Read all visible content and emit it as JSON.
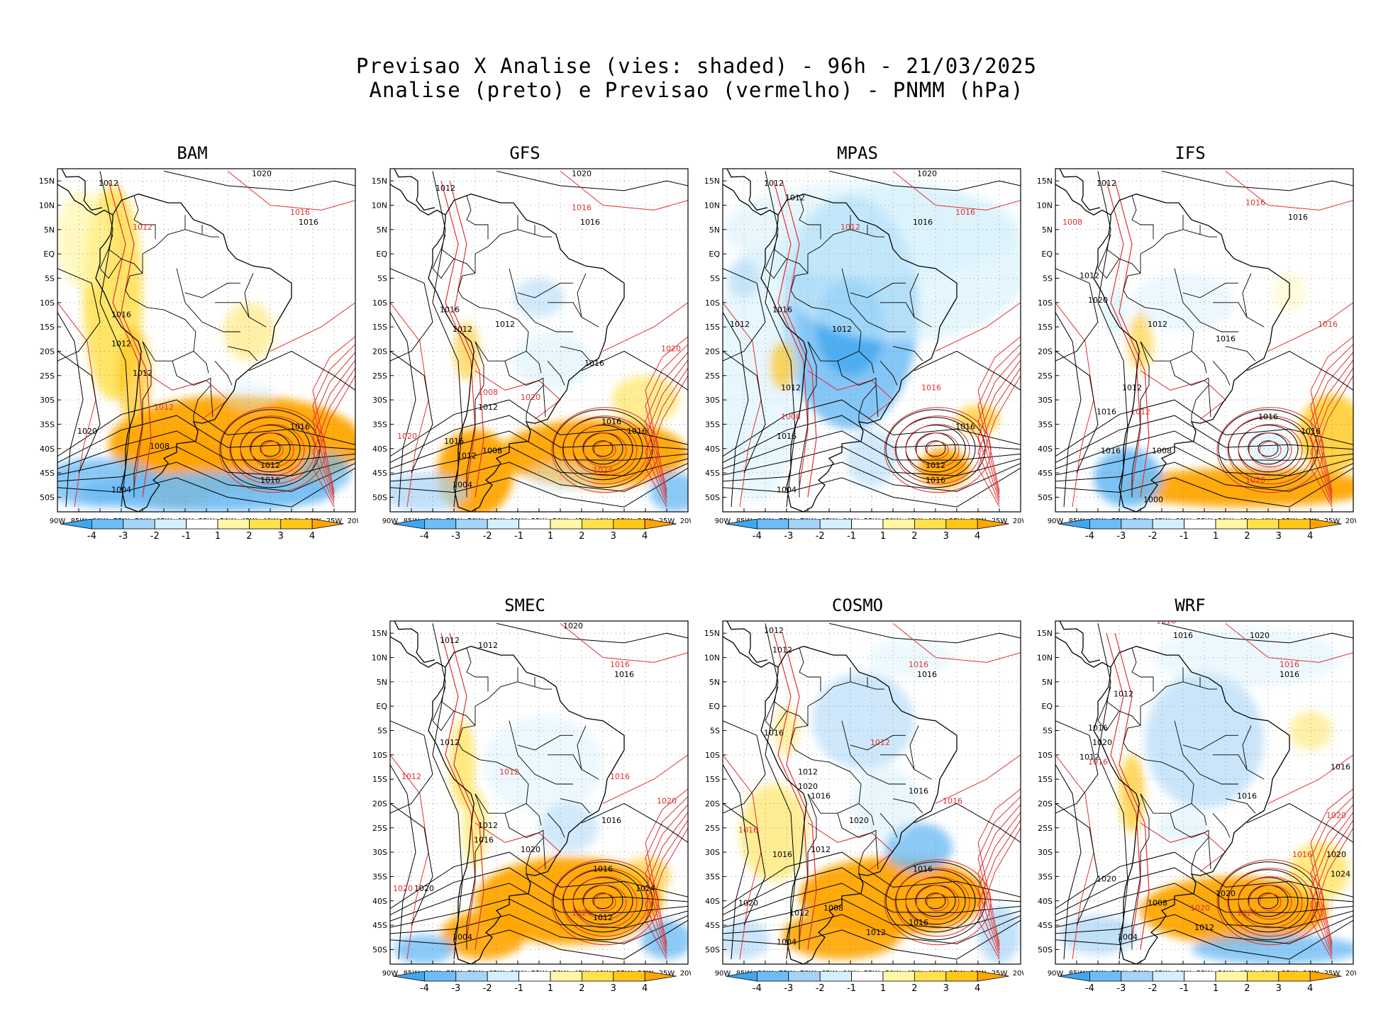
{
  "title": {
    "line1": "Previsao X Analise (vies: shaded) - 96h - 21/03/2025",
    "line2": "Analise (preto) e Previsao (vermelho) - PNMM (hPa)"
  },
  "lat_labels": [
    "15N",
    "10N",
    "5N",
    "EQ",
    "5S",
    "10S",
    "15S",
    "20S",
    "25S",
    "30S",
    "35S",
    "40S",
    "45S",
    "50S"
  ],
  "lon_labels": [
    "90W",
    "85W",
    "80W",
    "75W",
    "70W",
    "65W",
    "60W",
    "55W",
    "50W",
    "45W",
    "40W",
    "35W",
    "30W",
    "25W",
    "20W"
  ],
  "colorbar": {
    "labels": [
      "-4",
      "-3",
      "-2",
      "-1",
      "1",
      "2",
      "3",
      "4"
    ],
    "colors": [
      "#3fa7f0",
      "#6ebcf5",
      "#a6d4f7",
      "#d4f0fc",
      "#ffffff",
      "#fff7a6",
      "#ffe14d",
      "#ffc71a",
      "#ffa500"
    ]
  },
  "colors": {
    "analysis": "#000000",
    "forecast": "#e03030",
    "coast": "#000000"
  },
  "panels": [
    {
      "name": "BAM",
      "style": "bam",
      "labels": [
        {
          "t": "1020",
          "a": "analysis",
          "lon": -42,
          "lat": 16
        },
        {
          "t": "1016",
          "a": "forecast",
          "lon": -33,
          "lat": 8
        },
        {
          "t": "1016",
          "a": "analysis",
          "lon": -31,
          "lat": 6
        },
        {
          "t": "1012",
          "a": "analysis",
          "lon": -78,
          "lat": 14
        },
        {
          "t": "1012",
          "a": "forecast",
          "lon": -70,
          "lat": 5
        },
        {
          "t": "1016",
          "a": "analysis",
          "lon": -75,
          "lat": -13
        },
        {
          "t": "1012",
          "a": "analysis",
          "lon": -75,
          "lat": -19
        },
        {
          "t": "1012",
          "a": "analysis",
          "lon": -70,
          "lat": -25
        },
        {
          "t": "1012",
          "a": "forecast",
          "lon": -65,
          "lat": -32
        },
        {
          "t": "1016",
          "a": "analysis",
          "lon": -33,
          "lat": -36
        },
        {
          "t": "1020",
          "a": "analysis",
          "lon": -83,
          "lat": -37
        },
        {
          "t": "1008",
          "a": "analysis",
          "lon": -66,
          "lat": -40
        },
        {
          "t": "1012",
          "a": "analysis",
          "lon": -40,
          "lat": -44
        },
        {
          "t": "1016",
          "a": "analysis",
          "lon": -40,
          "lat": -47
        },
        {
          "t": "1004",
          "a": "analysis",
          "lon": -75,
          "lat": -49
        }
      ]
    },
    {
      "name": "GFS",
      "style": "gfs",
      "labels": [
        {
          "t": "1020",
          "a": "analysis",
          "lon": -45,
          "lat": 16
        },
        {
          "t": "1016",
          "a": "forecast",
          "lon": -45,
          "lat": 9
        },
        {
          "t": "1016",
          "a": "analysis",
          "lon": -43,
          "lat": 6
        },
        {
          "t": "1012",
          "a": "analysis",
          "lon": -77,
          "lat": 13
        },
        {
          "t": "1016",
          "a": "analysis",
          "lon": -76,
          "lat": -12
        },
        {
          "t": "1012",
          "a": "analysis",
          "lon": -73,
          "lat": -16
        },
        {
          "t": "1012",
          "a": "analysis",
          "lon": -63,
          "lat": -15
        },
        {
          "t": "1016",
          "a": "analysis",
          "lon": -42,
          "lat": -23
        },
        {
          "t": "1020",
          "a": "forecast",
          "lon": -24,
          "lat": -20
        },
        {
          "t": "1008",
          "a": "forecast",
          "lon": -67,
          "lat": -29
        },
        {
          "t": "1012",
          "a": "analysis",
          "lon": -67,
          "lat": -32
        },
        {
          "t": "1020",
          "a": "forecast",
          "lon": -57,
          "lat": -30
        },
        {
          "t": "1016",
          "a": "analysis",
          "lon": -38,
          "lat": -35
        },
        {
          "t": "1016",
          "a": "analysis",
          "lon": -32,
          "lat": -37
        },
        {
          "t": "1020",
          "a": "forecast",
          "lon": -86,
          "lat": -38
        },
        {
          "t": "1016",
          "a": "analysis",
          "lon": -75,
          "lat": -39
        },
        {
          "t": "1012",
          "a": "analysis",
          "lon": -72,
          "lat": -42
        },
        {
          "t": "1008",
          "a": "analysis",
          "lon": -66,
          "lat": -41
        },
        {
          "t": "1024",
          "a": "forecast",
          "lon": -40,
          "lat": -45
        },
        {
          "t": "1004",
          "a": "analysis",
          "lon": -73,
          "lat": -48
        }
      ]
    },
    {
      "name": "MPAS",
      "style": "mpas",
      "labels": [
        {
          "t": "1020",
          "a": "analysis",
          "lon": -42,
          "lat": 16
        },
        {
          "t": "1016",
          "a": "forecast",
          "lon": -33,
          "lat": 8
        },
        {
          "t": "1016",
          "a": "analysis",
          "lon": -43,
          "lat": 6
        },
        {
          "t": "1012",
          "a": "analysis",
          "lon": -78,
          "lat": 14
        },
        {
          "t": "1012",
          "a": "analysis",
          "lon": -73,
          "lat": 11
        },
        {
          "t": "1012",
          "a": "forecast",
          "lon": -60,
          "lat": 5
        },
        {
          "t": "1016",
          "a": "analysis",
          "lon": -76,
          "lat": -12
        },
        {
          "t": "1012",
          "a": "analysis",
          "lon": -86,
          "lat": -15
        },
        {
          "t": "1012",
          "a": "analysis",
          "lon": -62,
          "lat": -16
        },
        {
          "t": "1016",
          "a": "forecast",
          "lon": -41,
          "lat": -28
        },
        {
          "t": "1012",
          "a": "analysis",
          "lon": -74,
          "lat": -28
        },
        {
          "t": "1008",
          "a": "forecast",
          "lon": -74,
          "lat": -34
        },
        {
          "t": "1016",
          "a": "analysis",
          "lon": -75,
          "lat": -38
        },
        {
          "t": "1016",
          "a": "analysis",
          "lon": -33,
          "lat": -36
        },
        {
          "t": "1012",
          "a": "analysis",
          "lon": -40,
          "lat": -44
        },
        {
          "t": "1016",
          "a": "analysis",
          "lon": -40,
          "lat": -47
        },
        {
          "t": "1004",
          "a": "analysis",
          "lon": -75,
          "lat": -49
        }
      ]
    },
    {
      "name": "IFS",
      "style": "ifs",
      "labels": [
        {
          "t": "1016",
          "a": "forecast",
          "lon": -43,
          "lat": 10
        },
        {
          "t": "1016",
          "a": "analysis",
          "lon": -33,
          "lat": 7
        },
        {
          "t": "1012",
          "a": "analysis",
          "lon": -78,
          "lat": 14
        },
        {
          "t": "1008",
          "a": "forecast",
          "lon": -86,
          "lat": 6
        },
        {
          "t": "1012",
          "a": "analysis",
          "lon": -82,
          "lat": -5
        },
        {
          "t": "1020",
          "a": "analysis",
          "lon": -80,
          "lat": -10
        },
        {
          "t": "1012",
          "a": "analysis",
          "lon": -66,
          "lat": -15
        },
        {
          "t": "1016",
          "a": "forecast",
          "lon": -26,
          "lat": -15
        },
        {
          "t": "1016",
          "a": "analysis",
          "lon": -50,
          "lat": -18
        },
        {
          "t": "1012",
          "a": "analysis",
          "lon": -72,
          "lat": -28
        },
        {
          "t": "1012",
          "a": "forecast",
          "lon": -70,
          "lat": -33
        },
        {
          "t": "1016",
          "a": "analysis",
          "lon": -78,
          "lat": -33
        },
        {
          "t": "1016",
          "a": "analysis",
          "lon": -40,
          "lat": -34
        },
        {
          "t": "1016",
          "a": "analysis",
          "lon": -30,
          "lat": -37
        },
        {
          "t": "1008",
          "a": "analysis",
          "lon": -65,
          "lat": -41
        },
        {
          "t": "1016",
          "a": "analysis",
          "lon": -77,
          "lat": -41
        },
        {
          "t": "1020",
          "a": "forecast",
          "lon": -43,
          "lat": -47
        },
        {
          "t": "1000",
          "a": "analysis",
          "lon": -67,
          "lat": -51
        }
      ]
    },
    {
      "name": "SMEC",
      "style": "smec",
      "labels": [
        {
          "t": "1020",
          "a": "analysis",
          "lon": -47,
          "lat": 16
        },
        {
          "t": "1016",
          "a": "forecast",
          "lon": -36,
          "lat": 8
        },
        {
          "t": "1016",
          "a": "analysis",
          "lon": -35,
          "lat": 6
        },
        {
          "t": "1012",
          "a": "analysis",
          "lon": -76,
          "lat": 13
        },
        {
          "t": "1012",
          "a": "analysis",
          "lon": -67,
          "lat": 12
        },
        {
          "t": "1012",
          "a": "analysis",
          "lon": -76,
          "lat": -8
        },
        {
          "t": "1012",
          "a": "forecast",
          "lon": -85,
          "lat": -15
        },
        {
          "t": "1012",
          "a": "forecast",
          "lon": -62,
          "lat": -14
        },
        {
          "t": "1016",
          "a": "forecast",
          "lon": -36,
          "lat": -15
        },
        {
          "t": "1020",
          "a": "forecast",
          "lon": -25,
          "lat": -20
        },
        {
          "t": "1016",
          "a": "analysis",
          "lon": -38,
          "lat": -24
        },
        {
          "t": "1012",
          "a": "analysis",
          "lon": -67,
          "lat": -25
        },
        {
          "t": "1016",
          "a": "analysis",
          "lon": -68,
          "lat": -28
        },
        {
          "t": "1020",
          "a": "analysis",
          "lon": -57,
          "lat": -30
        },
        {
          "t": "1016",
          "a": "analysis",
          "lon": -40,
          "lat": -34
        },
        {
          "t": "1024",
          "a": "analysis",
          "lon": -30,
          "lat": -38
        },
        {
          "t": "1020",
          "a": "forecast",
          "lon": -87,
          "lat": -38
        },
        {
          "t": "1020",
          "a": "analysis",
          "lon": -82,
          "lat": -38
        },
        {
          "t": "1024",
          "a": "forecast",
          "lon": -45,
          "lat": -43
        },
        {
          "t": "1012",
          "a": "analysis",
          "lon": -40,
          "lat": -44
        },
        {
          "t": "1004",
          "a": "analysis",
          "lon": -73,
          "lat": -48
        }
      ]
    },
    {
      "name": "COSMO",
      "style": "cosmo",
      "labels": [
        {
          "t": "1012",
          "a": "analysis",
          "lon": -78,
          "lat": 15
        },
        {
          "t": "1012",
          "a": "analysis",
          "lon": -76,
          "lat": 11
        },
        {
          "t": "1016",
          "a": "forecast",
          "lon": -44,
          "lat": 8
        },
        {
          "t": "1016",
          "a": "analysis",
          "lon": -42,
          "lat": 6
        },
        {
          "t": "1016",
          "a": "analysis",
          "lon": -78,
          "lat": -6
        },
        {
          "t": "1012",
          "a": "forecast",
          "lon": -53,
          "lat": -8
        },
        {
          "t": "1012",
          "a": "analysis",
          "lon": -70,
          "lat": -14
        },
        {
          "t": "1020",
          "a": "analysis",
          "lon": -70,
          "lat": -17
        },
        {
          "t": "1016",
          "a": "analysis",
          "lon": -67,
          "lat": -19
        },
        {
          "t": "1016",
          "a": "analysis",
          "lon": -44,
          "lat": -18
        },
        {
          "t": "1016",
          "a": "forecast",
          "lon": -36,
          "lat": -20
        },
        {
          "t": "1020",
          "a": "analysis",
          "lon": -58,
          "lat": -24
        },
        {
          "t": "1016",
          "a": "forecast",
          "lon": -84,
          "lat": -26
        },
        {
          "t": "1012",
          "a": "analysis",
          "lon": -67,
          "lat": -30
        },
        {
          "t": "1016",
          "a": "analysis",
          "lon": -76,
          "lat": -31
        },
        {
          "t": "1016",
          "a": "analysis",
          "lon": -43,
          "lat": -34
        },
        {
          "t": "1020",
          "a": "analysis",
          "lon": -84,
          "lat": -41
        },
        {
          "t": "1008",
          "a": "analysis",
          "lon": -64,
          "lat": -42
        },
        {
          "t": "1012",
          "a": "analysis",
          "lon": -72,
          "lat": -43
        },
        {
          "t": "1012",
          "a": "analysis",
          "lon": -54,
          "lat": -47
        },
        {
          "t": "1016",
          "a": "analysis",
          "lon": -44,
          "lat": -45
        },
        {
          "t": "1004",
          "a": "analysis",
          "lon": -75,
          "lat": -49
        }
      ]
    },
    {
      "name": "WRF",
      "style": "wrf",
      "labels": [
        {
          "t": "1016",
          "a": "forecast",
          "lon": -64,
          "lat": 17
        },
        {
          "t": "1016",
          "a": "analysis",
          "lon": -60,
          "lat": 14
        },
        {
          "t": "1020",
          "a": "analysis",
          "lon": -42,
          "lat": 14
        },
        {
          "t": "1016",
          "a": "forecast",
          "lon": -35,
          "lat": 8
        },
        {
          "t": "1016",
          "a": "analysis",
          "lon": -35,
          "lat": 6
        },
        {
          "t": "1012",
          "a": "analysis",
          "lon": -74,
          "lat": 2
        },
        {
          "t": "1016",
          "a": "analysis",
          "lon": -80,
          "lat": -5
        },
        {
          "t": "1020",
          "a": "analysis",
          "lon": -79,
          "lat": -8
        },
        {
          "t": "1012",
          "a": "analysis",
          "lon": -82,
          "lat": -11
        },
        {
          "t": "1016",
          "a": "analysis",
          "lon": -23,
          "lat": -13
        },
        {
          "t": "1016",
          "a": "forecast",
          "lon": -80,
          "lat": -12
        },
        {
          "t": "1016",
          "a": "analysis",
          "lon": -45,
          "lat": -19
        },
        {
          "t": "1020",
          "a": "forecast",
          "lon": -24,
          "lat": -23
        },
        {
          "t": "1016",
          "a": "forecast",
          "lon": -32,
          "lat": -31
        },
        {
          "t": "1020",
          "a": "analysis",
          "lon": -24,
          "lat": -31
        },
        {
          "t": "1024",
          "a": "analysis",
          "lon": -23,
          "lat": -35
        },
        {
          "t": "1020",
          "a": "analysis",
          "lon": -78,
          "lat": -36
        },
        {
          "t": "1020",
          "a": "analysis",
          "lon": -50,
          "lat": -39
        },
        {
          "t": "1008",
          "a": "analysis",
          "lon": -66,
          "lat": -41
        },
        {
          "t": "1020",
          "a": "forecast",
          "lon": -56,
          "lat": -42
        },
        {
          "t": "1024",
          "a": "forecast",
          "lon": -45,
          "lat": -43
        },
        {
          "t": "1012",
          "a": "analysis",
          "lon": -55,
          "lat": -46
        },
        {
          "t": "1004",
          "a": "analysis",
          "lon": -73,
          "lat": -48
        }
      ]
    }
  ]
}
